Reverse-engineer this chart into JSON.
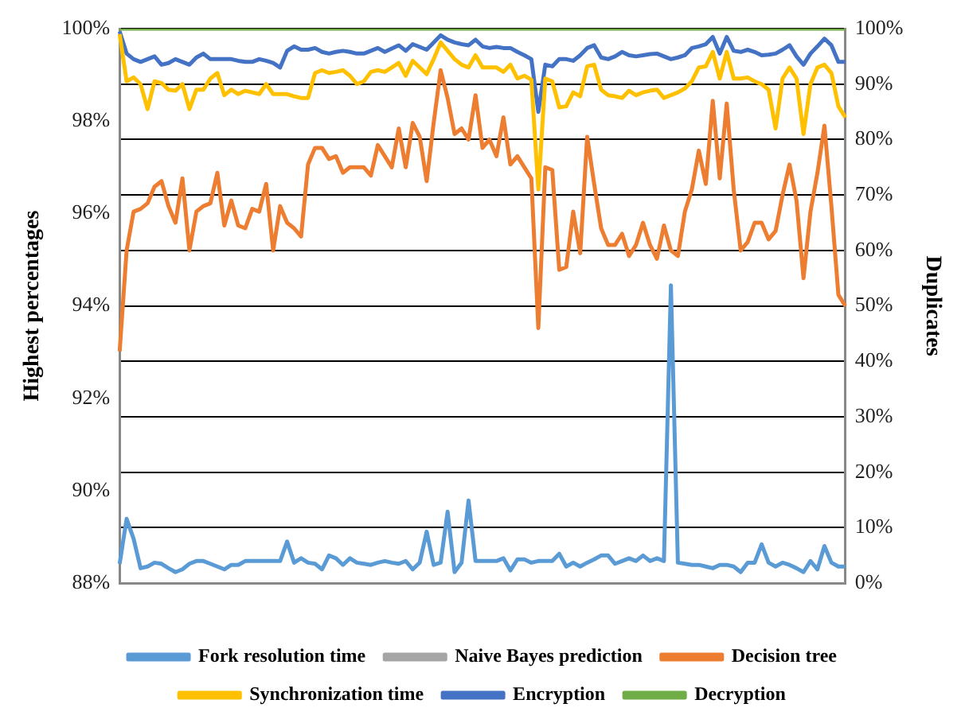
{
  "chart_data": {
    "type": "line",
    "ylabel": "Highest percentages",
    "y2label": "Duplicates",
    "categories": [
      null,
      null,
      null,
      null,
      null,
      null,
      null,
      null,
      null,
      null,
      null,
      null,
      null,
      null,
      null,
      null,
      null,
      null,
      null,
      null,
      null,
      null,
      null,
      null,
      null,
      null,
      null,
      null,
      null,
      null,
      null,
      null,
      null,
      null,
      null,
      null,
      null,
      null,
      null,
      null,
      null,
      null,
      null,
      null,
      null,
      null,
      null,
      null,
      null,
      null,
      null,
      null,
      null,
      null,
      null,
      null,
      null,
      null,
      null,
      null,
      null,
      null,
      null,
      null,
      null,
      null,
      null,
      null,
      null,
      null,
      null,
      null,
      null,
      null,
      null,
      null,
      null,
      null,
      null,
      null,
      null,
      null,
      null,
      null,
      null,
      null,
      null,
      null,
      null,
      null,
      null,
      null,
      null,
      null,
      null,
      null,
      null,
      null,
      null,
      null,
      null,
      null,
      null,
      null,
      null
    ],
    "ylim": [
      88,
      100
    ],
    "yticks": [
      {
        "value": 88,
        "label": "88%"
      },
      {
        "value": 90,
        "label": "90%"
      },
      {
        "value": 92,
        "label": "92%"
      },
      {
        "value": 94,
        "label": "94%"
      },
      {
        "value": 96,
        "label": "96%"
      },
      {
        "value": 98,
        "label": "98%"
      },
      {
        "value": 100,
        "label": "100%"
      }
    ],
    "y2lim": [
      0,
      100
    ],
    "y2ticks": [
      {
        "value": 0,
        "label": "0%"
      },
      {
        "value": 10,
        "label": "10%"
      },
      {
        "value": 20,
        "label": "20%"
      },
      {
        "value": 30,
        "label": "30%"
      },
      {
        "value": 40,
        "label": "40%"
      },
      {
        "value": 50,
        "label": "50%"
      },
      {
        "value": 60,
        "label": "60%"
      },
      {
        "value": 70,
        "label": "70%"
      },
      {
        "value": 80,
        "label": "80%"
      },
      {
        "value": 90,
        "label": "90%"
      },
      {
        "value": 100,
        "label": "100%"
      }
    ],
    "grid": "y",
    "legend": "bottom",
    "marker": "none",
    "line_style": "solid",
    "series": [
      {
        "name": "Fork resolution time",
        "color": "#5b9bd5",
        "axis": "y2",
        "values": [
          3.5,
          11.6,
          8,
          2.7,
          3,
          3.7,
          3.5,
          2.7,
          2,
          2.5,
          3.5,
          4,
          4,
          3.5,
          3,
          2.5,
          3.3,
          3.3,
          4,
          4,
          4,
          4,
          4,
          4,
          7.5,
          3.7,
          4.5,
          3.7,
          3.5,
          2.5,
          5,
          4.5,
          3.3,
          4.5,
          3.7,
          3.5,
          3.3,
          3.7,
          4,
          3.7,
          3.5,
          4,
          2.5,
          3.7,
          9.3,
          3.3,
          3.7,
          12.9,
          2,
          3.7,
          14.9,
          4,
          4,
          4,
          4,
          4.5,
          2.3,
          4.3,
          4.3,
          3.7,
          4,
          4,
          4,
          5.3,
          3,
          3.7,
          3,
          3.7,
          4.3,
          5,
          5,
          3.5,
          4,
          4.5,
          4,
          5,
          4,
          4.5,
          4,
          53.7,
          3.7,
          3.5,
          3.3,
          3.3,
          3,
          2.7,
          3.3,
          3.3,
          3,
          2,
          3.7,
          3.7,
          7,
          3.7,
          3,
          3.7,
          3.3,
          2.7,
          2,
          4,
          2.5,
          6.7,
          3.7,
          3,
          3
        ]
      },
      {
        "name": "Naive Bayes prediction",
        "color": "#a5a5a5",
        "axis": "y2",
        "values": [
          null,
          null,
          null,
          null,
          null,
          null,
          null,
          null,
          null,
          null,
          null,
          null,
          null,
          null,
          null,
          null,
          null,
          null,
          null,
          null,
          null,
          null,
          null,
          null,
          null,
          null,
          null,
          null,
          null,
          null,
          null,
          null,
          null,
          null,
          null,
          null,
          null,
          null,
          null,
          null,
          null,
          null,
          null,
          null,
          null,
          null,
          null,
          null,
          null,
          null,
          null,
          null,
          null,
          null,
          null,
          null,
          null,
          null,
          null,
          null,
          null,
          null,
          null,
          null,
          null,
          null,
          null,
          null,
          null,
          null,
          null,
          null,
          null,
          null,
          null,
          null,
          null,
          null,
          null,
          null,
          null,
          null,
          null,
          null,
          null,
          null,
          null,
          null,
          null,
          null,
          null,
          null,
          null,
          null,
          null,
          null,
          null,
          null,
          null,
          null,
          null,
          null,
          null,
          null,
          null
        ]
      },
      {
        "name": "Decision tree",
        "color": "#ed7d31",
        "axis": "y2",
        "values": [
          41.8,
          60,
          67,
          67.5,
          68.5,
          71.5,
          72.5,
          68,
          65,
          73,
          60,
          67,
          68,
          68.5,
          74,
          64.5,
          69,
          64.5,
          64,
          67.5,
          67,
          72,
          60,
          68,
          65,
          64,
          62.5,
          75.5,
          78.5,
          78.5,
          76.5,
          77,
          74,
          75,
          75,
          75,
          73.5,
          79,
          77,
          75,
          82,
          75,
          83,
          80.5,
          72.5,
          83,
          92.5,
          87.5,
          81,
          82,
          80,
          88,
          78.5,
          80,
          77,
          84,
          75.5,
          77,
          75,
          73,
          46,
          75,
          74.5,
          56.5,
          57,
          67,
          59.5,
          80.5,
          72,
          64,
          61,
          61,
          63,
          59,
          61,
          65,
          61,
          58.5,
          64.5,
          60,
          59,
          67,
          71,
          78,
          72,
          87,
          73,
          86.5,
          71,
          60,
          61.5,
          65,
          65,
          62,
          63.5,
          70,
          75.5,
          69,
          55,
          67,
          74,
          82.5,
          68,
          52,
          50
        ]
      },
      {
        "name": "Synchronization time",
        "color": "#ffc000",
        "axis": "y2",
        "values": [
          99,
          90.5,
          91.2,
          90,
          85.5,
          90.5,
          90.2,
          89,
          88.8,
          90,
          85.5,
          89,
          89,
          91,
          92,
          88,
          89,
          88.2,
          88.8,
          88.5,
          88.2,
          90,
          88.2,
          88.2,
          88.2,
          87.8,
          87.5,
          87.5,
          92,
          92.5,
          92,
          92.2,
          92.5,
          91.5,
          90,
          90.5,
          92.2,
          92.5,
          92.2,
          93,
          93.8,
          91.5,
          94.2,
          93,
          91.8,
          94.5,
          97.5,
          96,
          94.5,
          93.5,
          93,
          95.2,
          93,
          93,
          93,
          92.2,
          93.5,
          91,
          91.5,
          90.8,
          71,
          91,
          90.5,
          85.8,
          86,
          88.5,
          87.8,
          93.2,
          93.5,
          89,
          88,
          87.8,
          87.5,
          88.8,
          88,
          88.5,
          88.8,
          89,
          87.5,
          88,
          88.5,
          89.2,
          90.5,
          93,
          93.2,
          95.8,
          91,
          95.8,
          91,
          91,
          91.2,
          90.5,
          90,
          89,
          82,
          91,
          93,
          91,
          81,
          90,
          93,
          93.5,
          92,
          86,
          84
        ]
      },
      {
        "name": "Encryption",
        "color": "#4472c4",
        "axis": "y2",
        "values": [
          99.5,
          95.5,
          94.5,
          94,
          94.5,
          95,
          93.5,
          93.8,
          94.5,
          94,
          93.5,
          94.8,
          95.5,
          94.5,
          94.5,
          94.5,
          94.5,
          94.2,
          94,
          94,
          94.5,
          94.2,
          93.8,
          93,
          96,
          96.8,
          96.2,
          96.2,
          96.5,
          95.8,
          95.5,
          95.8,
          96,
          95.8,
          95.5,
          95.5,
          96,
          96.5,
          95.8,
          96.4,
          97,
          96,
          97.2,
          96.7,
          96.2,
          97.5,
          98.8,
          98,
          97.5,
          97.2,
          97,
          98,
          96.8,
          96.5,
          96.7,
          96.5,
          96.5,
          95.8,
          95.2,
          94.5,
          85,
          93.5,
          93.2,
          94.5,
          94.5,
          94.2,
          95.2,
          96.5,
          97,
          94.8,
          94.5,
          95,
          95.8,
          95.2,
          95,
          95.2,
          95.4,
          95.5,
          95,
          94.5,
          94.8,
          95.2,
          96.5,
          96.8,
          97.2,
          98.5,
          95.5,
          98.5,
          96,
          95.8,
          96.2,
          95.8,
          95.2,
          95.3,
          95.5,
          96.2,
          97,
          95,
          93.5,
          95.5,
          96.8,
          98.2,
          97,
          94,
          94
        ]
      },
      {
        "name": "Decryption",
        "color": "#70ad47",
        "axis": "y2",
        "values": [
          100,
          100,
          100,
          100,
          100,
          100,
          100,
          100,
          100,
          100,
          100,
          100,
          100,
          100,
          100,
          100,
          100,
          100,
          100,
          100,
          100,
          100,
          100,
          100,
          100,
          100,
          100,
          100,
          100,
          100,
          100,
          100,
          100,
          100,
          100,
          100,
          100,
          100,
          100,
          100,
          100,
          100,
          100,
          100,
          100,
          100,
          100,
          100,
          100,
          100,
          100,
          100,
          100,
          100,
          100,
          100,
          100,
          100,
          100,
          100,
          100,
          100,
          100,
          100,
          100,
          100,
          100,
          100,
          100,
          100,
          100,
          100,
          100,
          100,
          100,
          100,
          100,
          100,
          100,
          100,
          100,
          100,
          100,
          100,
          100,
          100,
          100,
          100,
          100,
          100,
          100,
          100,
          100,
          100,
          100,
          100,
          100,
          100,
          100,
          100,
          100,
          100,
          100,
          100,
          100
        ]
      }
    ]
  }
}
